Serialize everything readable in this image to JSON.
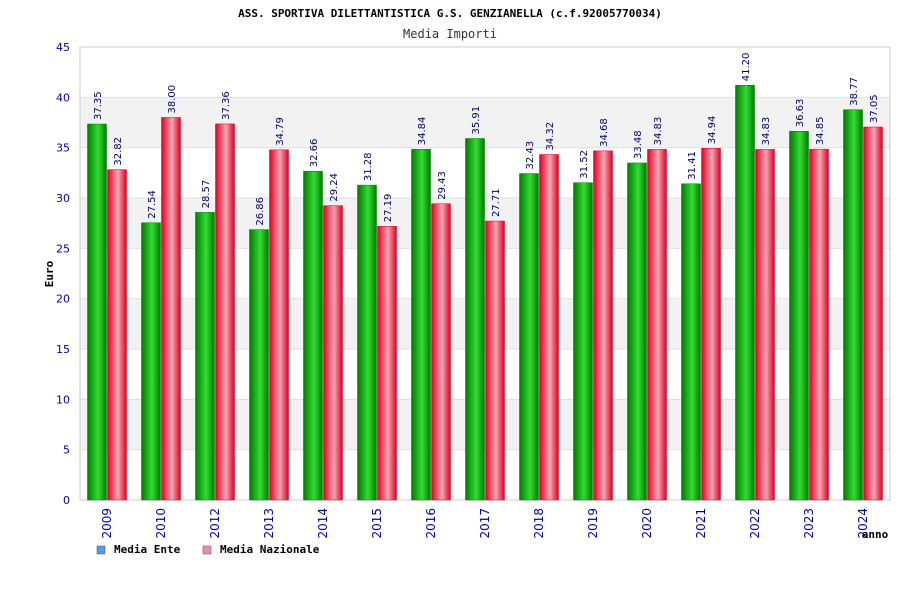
{
  "colors": {
    "ente_dark": "#007a00",
    "ente_light": "#33dd33",
    "naz_dark": "#dd0022",
    "naz_light": "#f4a6b4",
    "axis_text": "#0000aa",
    "label_text": "#000066",
    "band": "#f2f2f2",
    "grid": "#e0e0e0",
    "frame": "#cccccc"
  },
  "chart_data": {
    "type": "bar",
    "title": "ASS. SPORTIVA DILETTANTISTICA G.S. GENZIANELLA (c.f.92005770034)",
    "subtitle": "Media Importi",
    "xlabel": "anno",
    "ylabel": "Euro",
    "ylim": [
      0,
      45
    ],
    "yticks": [
      "0",
      "5",
      "10",
      "15",
      "20",
      "25",
      "30",
      "35",
      "40",
      "45"
    ],
    "categories": [
      "2009",
      "2010",
      "2012",
      "2013",
      "2014",
      "2015",
      "2016",
      "2017",
      "2018",
      "2019",
      "2020",
      "2021",
      "2022",
      "2023",
      "2024"
    ],
    "series": [
      {
        "name": "Media Ente",
        "legend_color": "#5599ee",
        "values": [
          37.35,
          27.54,
          28.57,
          26.86,
          32.66,
          31.28,
          34.84,
          35.91,
          32.43,
          31.52,
          33.48,
          31.41,
          41.2,
          36.63,
          38.77
        ],
        "labels": [
          "37.35",
          "27.54",
          "28.57",
          "26.86",
          "32.66",
          "31.28",
          "34.84",
          "35.91",
          "32.43",
          "31.52",
          "33.48",
          "31.41",
          "41.20",
          "36.63",
          "38.77"
        ]
      },
      {
        "name": "Media Nazionale",
        "legend_color": "#ee88bb",
        "values": [
          32.82,
          38.0,
          37.36,
          34.79,
          29.24,
          27.19,
          29.43,
          27.71,
          34.32,
          34.68,
          34.83,
          34.94,
          34.83,
          34.85,
          37.05
        ],
        "labels": [
          "32.82",
          "38.00",
          "37.36",
          "34.79",
          "29.24",
          "27.19",
          "29.43",
          "27.71",
          "34.32",
          "34.68",
          "34.83",
          "34.94",
          "34.83",
          "34.85",
          "37.05"
        ]
      }
    ],
    "legend_position": "bottom-left",
    "grid": true
  }
}
